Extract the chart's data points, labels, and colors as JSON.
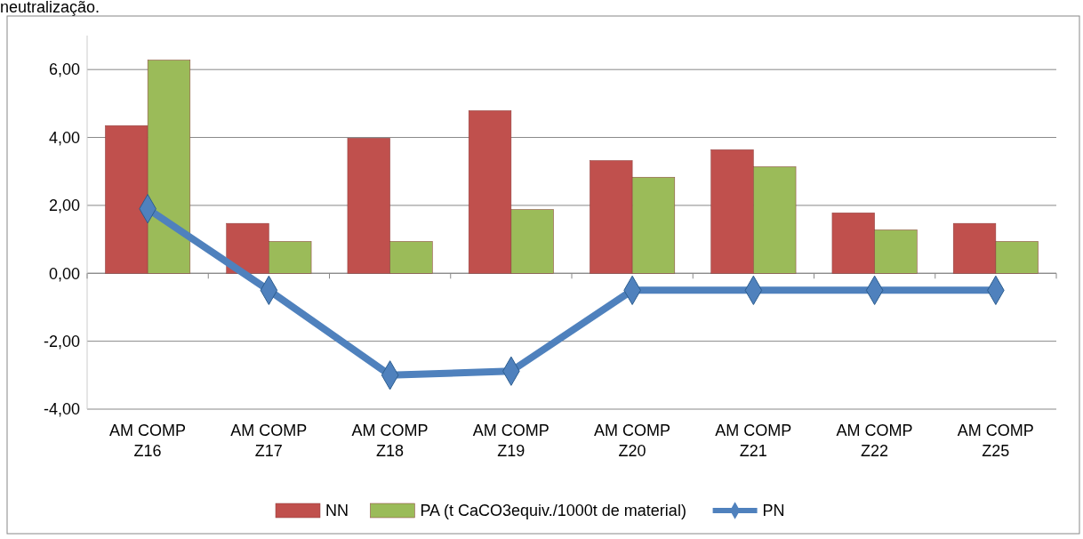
{
  "chart_data": {
    "type": "bar",
    "title": "neutralização.",
    "categories": [
      "AM COMP Z16",
      "AM COMP Z17",
      "AM COMP Z18",
      "AM COMP Z19",
      "AM COMP Z20",
      "AM COMP Z21",
      "AM COMP Z22",
      "AM COMP Z25"
    ],
    "series": [
      {
        "name": "NN",
        "color": "#c0504d",
        "values": [
          4.35,
          1.47,
          3.98,
          4.79,
          3.32,
          3.64,
          1.78,
          1.47
        ]
      },
      {
        "name": "PA (t CaCO3equiv./1000t de material)",
        "color": "#9bbb59",
        "values": [
          6.28,
          0.94,
          0.94,
          1.88,
          2.83,
          3.14,
          1.28,
          0.94
        ]
      },
      {
        "name": "PN",
        "type": "line",
        "color": "#4f81bd",
        "marker": "diamond",
        "values": [
          1.9,
          -0.5,
          -3.0,
          -2.88,
          -0.5,
          -0.5,
          -0.5,
          -0.5
        ]
      }
    ],
    "ylim": [
      -4,
      7
    ],
    "yticks": [
      {
        "value": -4,
        "label": "-4,00"
      },
      {
        "value": -2,
        "label": "-2,00"
      },
      {
        "value": 0,
        "label": "0,00"
      },
      {
        "value": 2,
        "label": "2,00"
      },
      {
        "value": 4,
        "label": "4,00"
      },
      {
        "value": 6,
        "label": "6,00"
      }
    ],
    "grid": "y",
    "legend": "bottom"
  }
}
